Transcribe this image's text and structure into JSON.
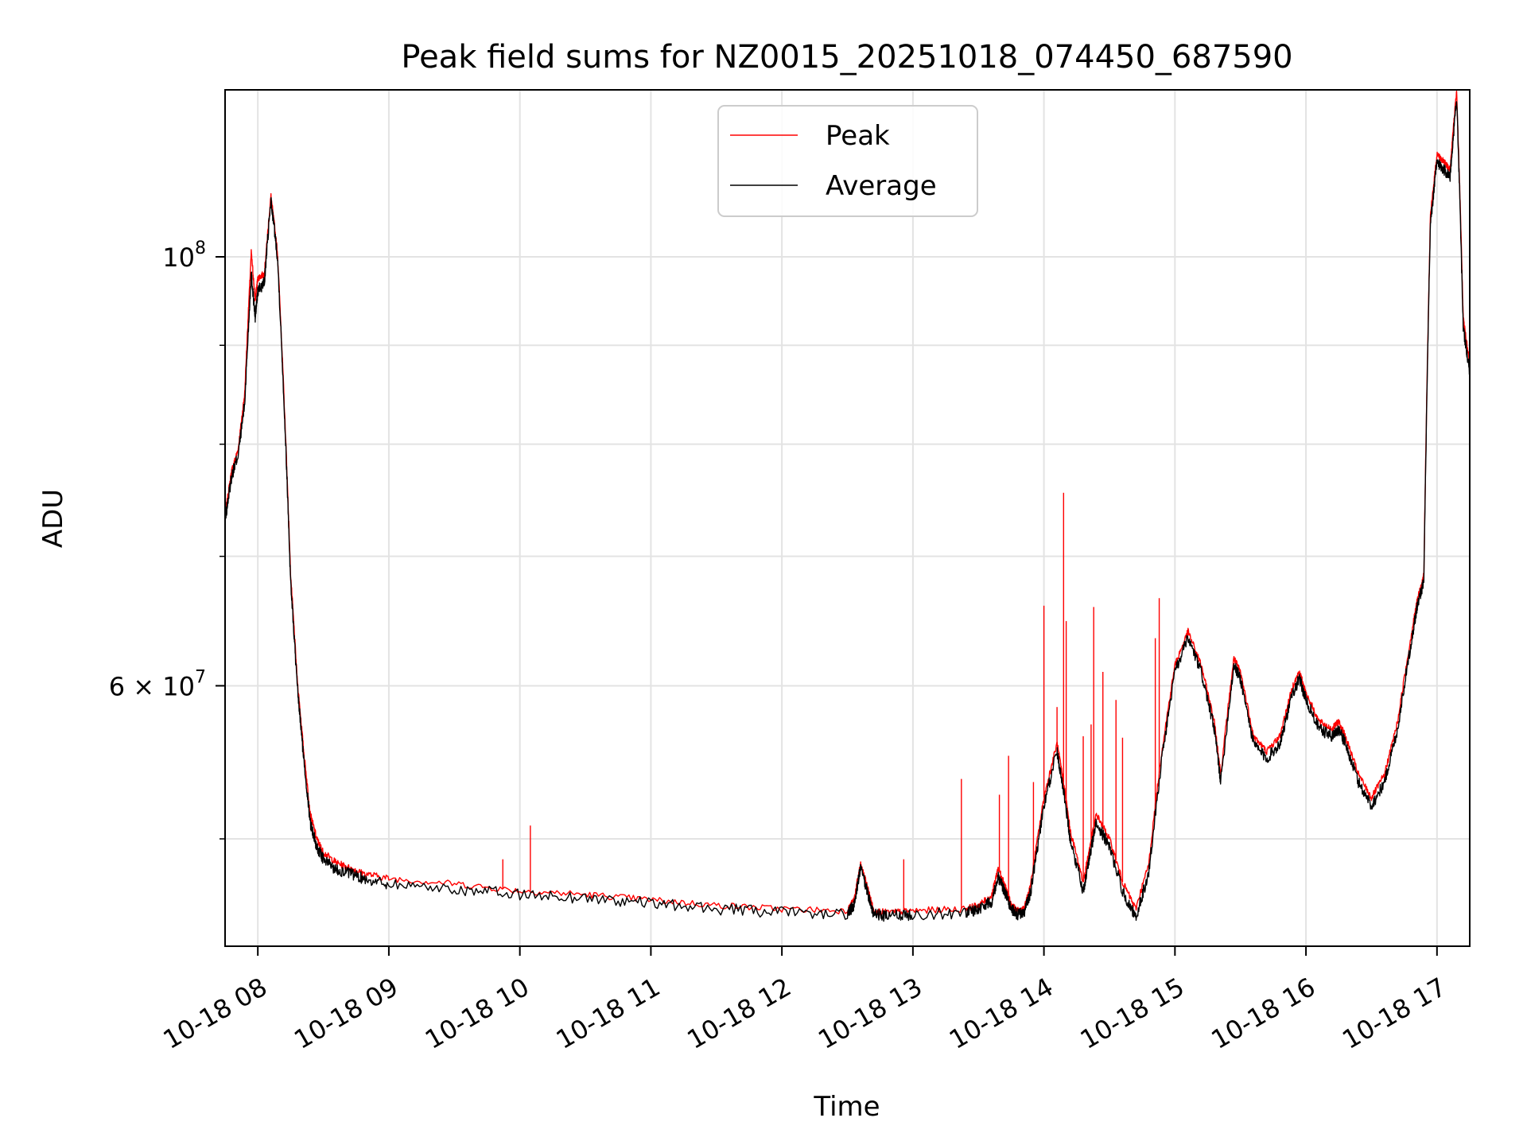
{
  "chart_data": {
    "type": "line",
    "title": "Peak field sums for NZ0015_20251018_074450_687590",
    "xlabel": "Time",
    "ylabel": "ADU",
    "yscale": "log",
    "ylim": [
      44000000,
      122000000
    ],
    "xlim": [
      7.75,
      17.25
    ],
    "grid": true,
    "legend_position": "top-center",
    "x_ticks": [
      {
        "value": 8,
        "label": "10-18 08"
      },
      {
        "value": 9,
        "label": "10-18 09"
      },
      {
        "value": 10,
        "label": "10-18 10"
      },
      {
        "value": 11,
        "label": "10-18 11"
      },
      {
        "value": 12,
        "label": "10-18 12"
      },
      {
        "value": 13,
        "label": "10-18 13"
      },
      {
        "value": 14,
        "label": "10-18 14"
      },
      {
        "value": 15,
        "label": "10-18 15"
      },
      {
        "value": 16,
        "label": "10-18 16"
      },
      {
        "value": 17,
        "label": "10-18 17"
      }
    ],
    "y_major_ticks": [
      {
        "value": 100000000,
        "base": "10",
        "exp": "8"
      },
      {
        "value": 60000000,
        "base": "6 × 10",
        "exp": "7"
      }
    ],
    "y_minor_ticks": [
      50000000,
      70000000,
      80000000,
      90000000
    ],
    "x_unit": "hour of 2025-10-18",
    "series": [
      {
        "name": "Average",
        "color": "#000000",
        "x": [
          7.75,
          7.8,
          7.85,
          7.9,
          7.95,
          7.98,
          8.0,
          8.05,
          8.1,
          8.15,
          8.2,
          8.25,
          8.3,
          8.35,
          8.4,
          8.45,
          8.5,
          8.6,
          8.7,
          8.8,
          9.0,
          9.5,
          10.0,
          10.5,
          11.0,
          11.5,
          12.0,
          12.5,
          12.55,
          12.6,
          12.65,
          12.7,
          12.8,
          13.0,
          13.4,
          13.5,
          13.6,
          13.65,
          13.7,
          13.75,
          13.8,
          13.85,
          13.9,
          14.0,
          14.1,
          14.15,
          14.2,
          14.3,
          14.35,
          14.4,
          14.5,
          14.6,
          14.7,
          14.8,
          14.9,
          15.0,
          15.1,
          15.2,
          15.3,
          15.35,
          15.45,
          15.5,
          15.6,
          15.7,
          15.8,
          15.9,
          15.95,
          16.0,
          16.1,
          16.2,
          16.25,
          16.3,
          16.4,
          16.5,
          16.6,
          16.7,
          16.8,
          16.85,
          16.9,
          16.95,
          17.0,
          17.05,
          17.1,
          17.15,
          17.2,
          17.25
        ],
        "values": [
          73000000,
          77000000,
          79000000,
          84000000,
          98000000,
          93000000,
          96000000,
          97000000,
          107000000,
          100000000,
          84000000,
          68000000,
          60000000,
          55000000,
          51000000,
          49500000,
          48800000,
          48200000,
          48000000,
          47700000,
          47400000,
          47100000,
          46800000,
          46600000,
          46300000,
          46000000,
          45800000,
          45700000,
          46200000,
          48300000,
          47000000,
          45700000,
          45600000,
          45700000,
          45800000,
          46000000,
          46400000,
          47800000,
          47000000,
          46000000,
          45700000,
          45800000,
          47000000,
          52000000,
          55500000,
          53000000,
          50000000,
          47000000,
          49000000,
          51000000,
          49500000,
          47000000,
          45500000,
          48000000,
          55000000,
          61000000,
          63500000,
          61000000,
          57000000,
          53500000,
          61500000,
          60500000,
          56000000,
          55000000,
          56000000,
          59500000,
          60500000,
          59000000,
          57000000,
          56500000,
          57000000,
          56000000,
          53500000,
          52000000,
          53500000,
          57000000,
          63000000,
          66000000,
          68000000,
          104000000,
          112000000,
          111000000,
          110000000,
          121000000,
          92000000,
          87000000
        ]
      },
      {
        "name": "Peak",
        "color": "#ff0000",
        "x": [
          7.75,
          7.8,
          7.85,
          7.9,
          7.95,
          7.98,
          8.0,
          8.05,
          8.1,
          8.15,
          8.2,
          8.25,
          8.3,
          8.35,
          8.4,
          8.45,
          8.5,
          8.6,
          8.7,
          8.8,
          9.0,
          9.5,
          10.0,
          10.5,
          11.0,
          11.5,
          12.0,
          12.5,
          12.55,
          12.6,
          12.65,
          12.7,
          12.8,
          13.0,
          13.4,
          13.5,
          13.6,
          13.65,
          13.7,
          13.75,
          13.8,
          13.85,
          13.9,
          14.0,
          14.1,
          14.15,
          14.2,
          14.3,
          14.35,
          14.4,
          14.5,
          14.6,
          14.7,
          14.8,
          14.9,
          15.0,
          15.1,
          15.2,
          15.3,
          15.35,
          15.45,
          15.5,
          15.6,
          15.7,
          15.8,
          15.9,
          15.95,
          16.0,
          16.1,
          16.2,
          16.25,
          16.3,
          16.4,
          16.5,
          16.6,
          16.7,
          16.8,
          16.85,
          16.9,
          16.95,
          17.0,
          17.05,
          17.1,
          17.15,
          17.2,
          17.25
        ],
        "values": [
          73500000,
          77500000,
          79500000,
          85000000,
          100500000,
          95000000,
          97500000,
          98000000,
          107500000,
          100500000,
          84500000,
          68500000,
          60500000,
          55500000,
          51500000,
          50000000,
          49200000,
          48600000,
          48300000,
          48000000,
          47700000,
          47400000,
          47000000,
          46800000,
          46500000,
          46200000,
          46000000,
          45900000,
          46500000,
          48500000,
          47300000,
          45900000,
          45800000,
          45900000,
          46000000,
          46200000,
          46700000,
          48300000,
          47400000,
          46200000,
          45900000,
          46000000,
          47400000,
          52500000,
          56000000,
          53500000,
          50500000,
          47500000,
          49500000,
          51500000,
          50000000,
          47500000,
          46000000,
          48500000,
          55500000,
          61500000,
          64000000,
          61500000,
          57500000,
          54000000,
          62000000,
          61000000,
          56500000,
          55500000,
          56500000,
          60000000,
          61000000,
          59500000,
          57500000,
          57000000,
          57500000,
          56500000,
          54000000,
          52500000,
          54000000,
          57500000,
          63500000,
          66500000,
          68500000,
          105000000,
          113000000,
          112000000,
          111000000,
          122000000,
          93000000,
          88000000
        ]
      }
    ],
    "peak_spikes": [
      {
        "x": 9.87,
        "value": 48800000
      },
      {
        "x": 10.08,
        "value": 50800000
      },
      {
        "x": 12.93,
        "value": 48800000
      },
      {
        "x": 13.37,
        "value": 53700000
      },
      {
        "x": 13.66,
        "value": 52700000
      },
      {
        "x": 13.73,
        "value": 55200000
      },
      {
        "x": 13.92,
        "value": 53500000
      },
      {
        "x": 14.0,
        "value": 66000000
      },
      {
        "x": 14.1,
        "value": 58500000
      },
      {
        "x": 14.15,
        "value": 75500000
      },
      {
        "x": 14.17,
        "value": 64800000
      },
      {
        "x": 14.3,
        "value": 56500000
      },
      {
        "x": 14.36,
        "value": 57300000
      },
      {
        "x": 14.38,
        "value": 65900000
      },
      {
        "x": 14.45,
        "value": 61000000
      },
      {
        "x": 14.55,
        "value": 59000000
      },
      {
        "x": 14.6,
        "value": 56400000
      },
      {
        "x": 14.85,
        "value": 63500000
      },
      {
        "x": 14.88,
        "value": 66600000
      }
    ]
  }
}
